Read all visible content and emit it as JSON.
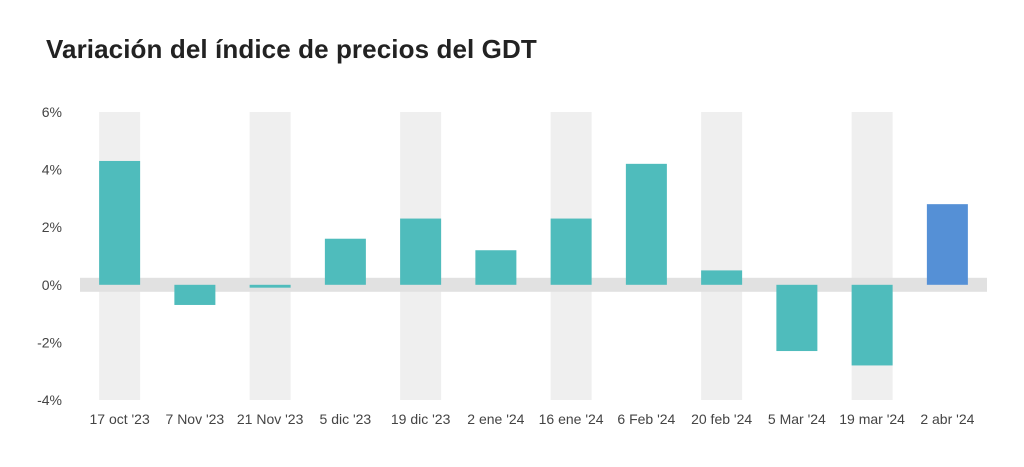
{
  "chart_data": {
    "type": "bar",
    "title": "Variación del índice de precios del GDT",
    "xlabel": "",
    "ylabel": "",
    "categories": [
      "17 oct '23",
      "7 Nov '23",
      "21 Nov '23",
      "5 dic '23",
      "19 dic '23",
      "2 ene '24",
      "16 ene '24",
      "6 Feb '24",
      "20 feb '24",
      "5 Mar '24",
      "19 mar '24",
      "2 abr '24"
    ],
    "values": [
      4.3,
      -0.7,
      -0.1,
      1.6,
      2.3,
      1.2,
      2.3,
      4.2,
      0.5,
      -2.3,
      -2.8,
      2.8
    ],
    "ylim": [
      -4,
      6
    ],
    "yticks": [
      6,
      4,
      2,
      0,
      -2,
      -4
    ],
    "ytick_labels": [
      "6%",
      "4%",
      "2%",
      "0%",
      "-2%",
      "-4%"
    ],
    "legend": "none",
    "grid": "alternating vertical bands",
    "colors": {
      "bar": "#4fbcbc",
      "highlight_bar": "#5590d6",
      "band": "#efefef",
      "zero_band": "#e1e1e1"
    },
    "highlight_index": 11
  }
}
